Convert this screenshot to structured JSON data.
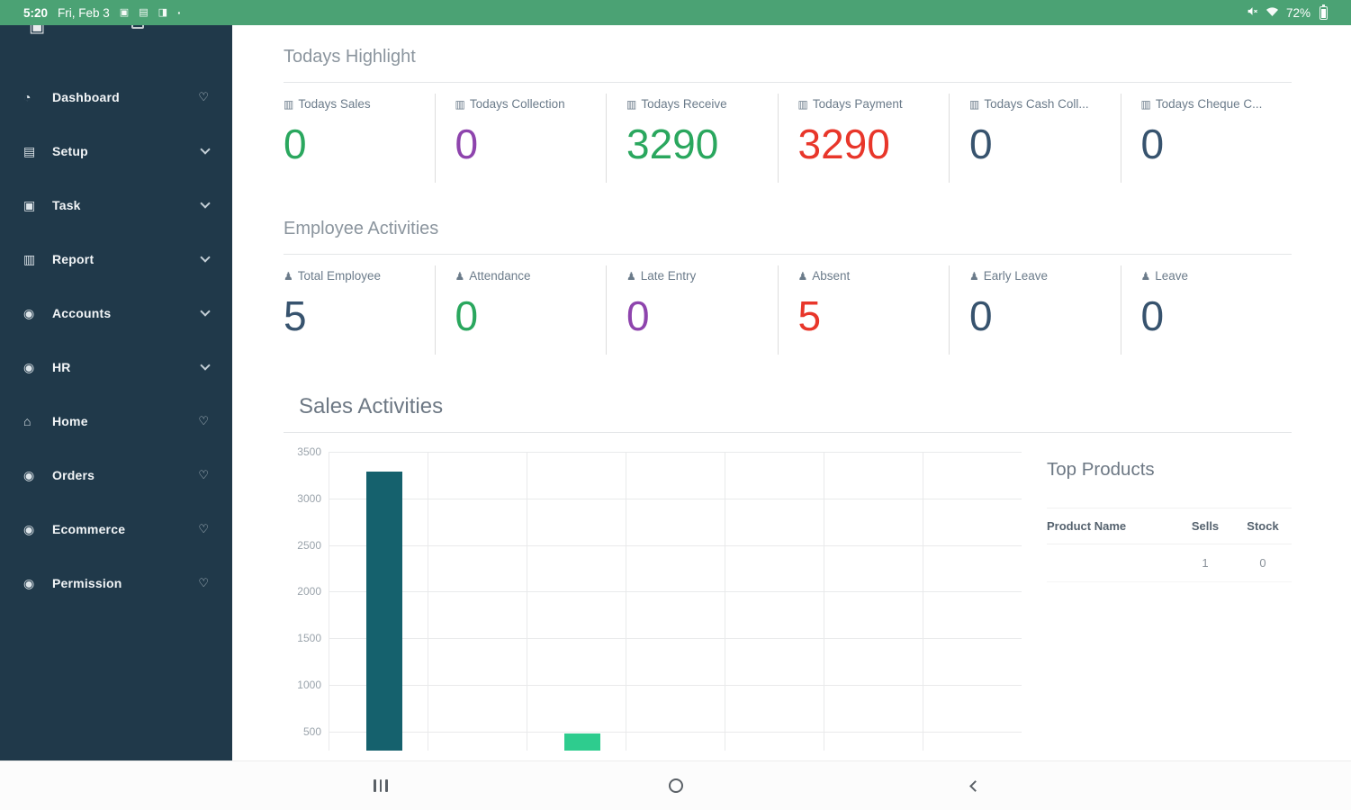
{
  "colors": {
    "status_green": "#4ba274",
    "sidebar_bg": "#20394a",
    "green": "#2aa75e",
    "purple": "#8e44ad",
    "red": "#e8362a",
    "slate": "#37536e",
    "teal_bar": "#15616d",
    "green_bar": "#2ecc8e"
  },
  "status_bar": {
    "time": "5:20",
    "date": "Fri, Feb 3",
    "battery_percent": "72%",
    "left_icons": [
      "notification-icon",
      "notification-icon",
      "notification-icon",
      "overflow-dot"
    ],
    "right_icons": [
      "mute-icon",
      "wifi-icon",
      "battery-icon"
    ]
  },
  "sidebar": {
    "items": [
      {
        "label": "Dashboard",
        "icon": "gauge",
        "right": "heart"
      },
      {
        "label": "Setup",
        "icon": "list",
        "right": "chevron"
      },
      {
        "label": "Task",
        "icon": "task",
        "right": "chevron"
      },
      {
        "label": "Report",
        "icon": "chart",
        "right": "chevron"
      },
      {
        "label": "Accounts",
        "icon": "circle-dollar",
        "right": "chevron"
      },
      {
        "label": "HR",
        "icon": "circle-users",
        "right": "chevron"
      },
      {
        "label": "Home",
        "icon": "home",
        "right": "heart"
      },
      {
        "label": "Orders",
        "icon": "circle-cart",
        "right": "heart"
      },
      {
        "label": "Ecommerce",
        "icon": "circle-globe",
        "right": "heart"
      },
      {
        "label": "Permission",
        "icon": "circle-lock",
        "right": "heart"
      }
    ]
  },
  "highlights": {
    "title": "Todays Highlight",
    "icon": "bar-chart",
    "items": [
      {
        "label": "Todays Sales",
        "value": "0",
        "color": "#2aa75e"
      },
      {
        "label": "Todays Collection",
        "value": "0",
        "color": "#8e44ad"
      },
      {
        "label": "Todays Receive",
        "value": "3290",
        "color": "#2aa75e"
      },
      {
        "label": "Todays Payment",
        "value": "3290",
        "color": "#e8362a"
      },
      {
        "label": "Todays Cash Coll...",
        "value": "0",
        "color": "#37536e"
      },
      {
        "label": "Todays Cheque C...",
        "value": "0",
        "color": "#37536e"
      }
    ]
  },
  "employee": {
    "title": "Employee Activities",
    "icon": "person",
    "items": [
      {
        "label": "Total Employee",
        "value": "5",
        "color": "#37536e"
      },
      {
        "label": "Attendance",
        "value": "0",
        "color": "#2aa75e"
      },
      {
        "label": "Late Entry",
        "value": "0",
        "color": "#8e44ad"
      },
      {
        "label": "Absent",
        "value": "5",
        "color": "#e8362a"
      },
      {
        "label": "Early Leave",
        "value": "0",
        "color": "#37536e"
      },
      {
        "label": "Leave",
        "value": "0",
        "color": "#37536e"
      }
    ]
  },
  "chart_data": {
    "type": "bar",
    "title": "Sales Activities",
    "xlabel": "",
    "ylabel": "",
    "ylim": [
      0,
      3500
    ],
    "y_ticks": [
      500,
      1000,
      1500,
      2000,
      2500,
      3000,
      3500
    ],
    "grid": true,
    "legend": false,
    "bars": [
      {
        "x_index": 0,
        "value": 3290,
        "color": "#15616d"
      },
      {
        "x_index": 2,
        "value": 480,
        "color": "#2ecc8e"
      }
    ]
  },
  "top_products": {
    "title": "Top Products",
    "columns": [
      "Product Name",
      "Sells",
      "Stock"
    ],
    "rows": [
      {
        "product_name": "",
        "sells": "1",
        "stock": "0"
      }
    ]
  },
  "nav_bar": {
    "icons": [
      "recents",
      "home",
      "back"
    ]
  }
}
